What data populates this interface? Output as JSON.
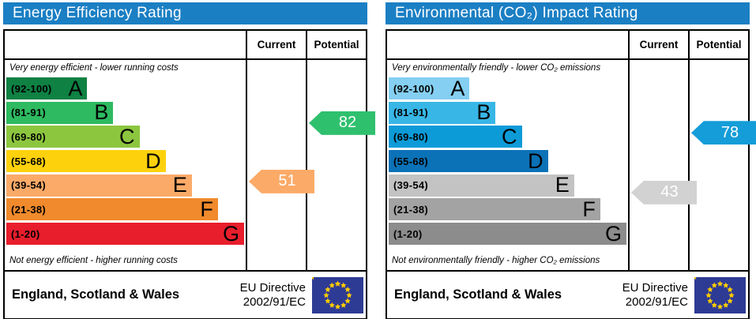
{
  "chart_data": [
    {
      "type": "bar",
      "title": "Energy Efficiency Rating",
      "categories": [
        "A (92-100)",
        "B (81-91)",
        "C (69-80)",
        "D (55-68)",
        "E (39-54)",
        "F (21-38)",
        "G (1-20)"
      ],
      "series": [
        {
          "name": "Current",
          "values": [
            51
          ],
          "band": "E"
        },
        {
          "name": "Potential",
          "values": [
            82
          ],
          "band": "B"
        }
      ],
      "ylim": [
        1,
        100
      ],
      "annotations": [
        "Very energy efficient - lower running costs",
        "Not energy efficient - higher running costs",
        "England, Scotland & Wales",
        "EU Directive 2002/91/EC"
      ]
    },
    {
      "type": "bar",
      "title": "Environmental (CO₂) Impact Rating",
      "categories": [
        "A (92-100)",
        "B (81-91)",
        "C (69-80)",
        "D (55-68)",
        "E (39-54)",
        "F (21-38)",
        "G (1-20)"
      ],
      "series": [
        {
          "name": "Current",
          "values": [
            43
          ],
          "band": "E"
        },
        {
          "name": "Potential",
          "values": [
            78
          ],
          "band": "C"
        }
      ],
      "ylim": [
        1,
        100
      ],
      "annotations": [
        "Very environmentally friendly - lower CO₂ emissions",
        "Not environmentally friendly - higher CO₂ emissions",
        "England, Scotland & Wales",
        "EU Directive 2002/91/EC"
      ]
    }
  ],
  "panels": [
    {
      "title": "Energy Efficiency Rating",
      "header_color": "#1b7fc4",
      "columns": {
        "current": "Current",
        "potential": "Potential"
      },
      "top_caption": "Very energy efficient - lower running costs",
      "bottom_caption": "Not energy efficient - higher running costs",
      "bands": [
        {
          "range": "(92-100)",
          "letter": "A",
          "min": 92,
          "max": 100,
          "color": "#0e8143"
        },
        {
          "range": "(81-91)",
          "letter": "B",
          "min": 81,
          "max": 91,
          "color": "#2dba60"
        },
        {
          "range": "(69-80)",
          "letter": "C",
          "min": 69,
          "max": 80,
          "color": "#8cc63f"
        },
        {
          "range": "(55-68)",
          "letter": "D",
          "min": 55,
          "max": 68,
          "color": "#fed10d"
        },
        {
          "range": "(39-54)",
          "letter": "E",
          "min": 39,
          "max": 54,
          "color": "#fbaa68"
        },
        {
          "range": "(21-38)",
          "letter": "F",
          "min": 21,
          "max": 38,
          "color": "#f08a2c"
        },
        {
          "range": "(1-20)",
          "letter": "G",
          "min": 1,
          "max": 20,
          "color": "#e81e2c"
        }
      ],
      "current": {
        "value": "51",
        "score": 51,
        "color": "#fbaa68"
      },
      "potential": {
        "value": "82",
        "score": 82,
        "color": "#2fc06e"
      },
      "footer": {
        "region": "England, Scotland & Wales",
        "directive_line1": "EU Directive",
        "directive_line2": "2002/91/EC",
        "flag_blue": "#2e3b94",
        "flag_star": "#ffcc00"
      }
    },
    {
      "title": "Environmental (CO₂) Impact Rating",
      "header_color": "#1b7fc4",
      "columns": {
        "current": "Current",
        "potential": "Potential"
      },
      "top_caption": "Very environmentally friendly - lower CO₂ emissions",
      "bottom_caption": "Not environmentally friendly - higher CO₂ emissions",
      "bands": [
        {
          "range": "(92-100)",
          "letter": "A",
          "min": 92,
          "max": 100,
          "color": "#84cff2"
        },
        {
          "range": "(81-91)",
          "letter": "B",
          "min": 81,
          "max": 91,
          "color": "#38b6e6"
        },
        {
          "range": "(69-80)",
          "letter": "C",
          "min": 69,
          "max": 80,
          "color": "#0d9bd8"
        },
        {
          "range": "(55-68)",
          "letter": "D",
          "min": 55,
          "max": 68,
          "color": "#0b72b7"
        },
        {
          "range": "(39-54)",
          "letter": "E",
          "min": 39,
          "max": 54,
          "color": "#c3c3c3"
        },
        {
          "range": "(21-38)",
          "letter": "F",
          "min": 21,
          "max": 38,
          "color": "#a3a3a3"
        },
        {
          "range": "(1-20)",
          "letter": "G",
          "min": 1,
          "max": 20,
          "color": "#8c8c8c"
        }
      ],
      "current": {
        "value": "43",
        "score": 43,
        "color": "#d2d2d2"
      },
      "potential": {
        "value": "78",
        "score": 78,
        "color": "#149dd8"
      },
      "footer": {
        "region": "England, Scotland & Wales",
        "directive_line1": "EU Directive",
        "directive_line2": "2002/91/EC",
        "flag_blue": "#2e3b94",
        "flag_star": "#ffcc00"
      }
    }
  ]
}
